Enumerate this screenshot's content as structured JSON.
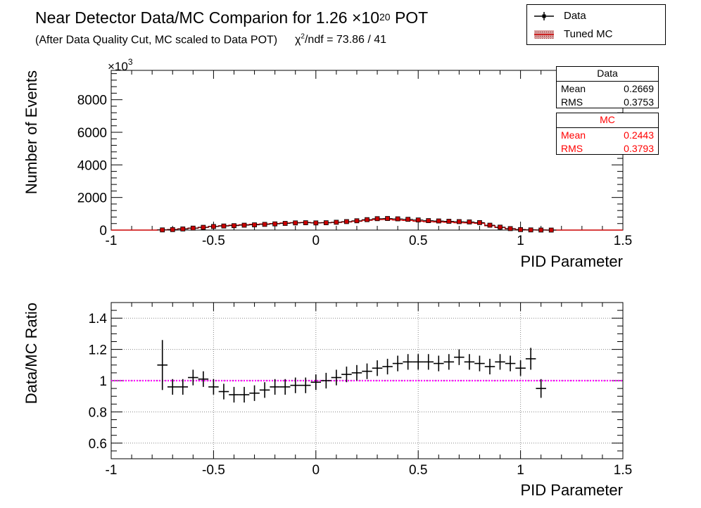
{
  "header": {
    "title_prefix": "Near Detector Data/MC Comparion for 1.26 ",
    "title_times": "×10",
    "title_exp": "20",
    "title_suffix": " POT",
    "subtitle": "(After Data Quality Cut, MC scaled to Data POT)",
    "chi2_symbol": "χ",
    "chi2_exp": "2",
    "chi2_text": "/ndf = 73.86 / 41"
  },
  "legend": {
    "items": [
      {
        "label": "Data",
        "style": "marker-line",
        "color": "#000000"
      },
      {
        "label": "Tuned MC",
        "style": "hatched-band",
        "color": "#cc0000"
      }
    ]
  },
  "stats": {
    "data": {
      "title": "Data",
      "mean_label": "Mean",
      "mean": "0.2669",
      "rms_label": "RMS",
      "rms": "0.3753",
      "color": "#000000"
    },
    "mc": {
      "title": "MC",
      "mean_label": "Mean",
      "mean": "0.2443",
      "rms_label": "RMS",
      "rms": "0.3793",
      "color": "#ff0000"
    }
  },
  "colors": {
    "data": "#000000",
    "mc": "#cc0000",
    "ratio_line": "#ff00ff",
    "grid": "#888888"
  },
  "chart_data": [
    {
      "type": "line",
      "xlabel": "PID Parameter",
      "ylabel": "Number of Events",
      "y_multiplier": "×10",
      "y_multiplier_exp": "3",
      "xlim": [
        -1,
        1.5
      ],
      "ylim": [
        0,
        9800
      ],
      "xticks": [
        -1,
        -0.5,
        0,
        0.5,
        1,
        1.5
      ],
      "xtick_labels": [
        "-1",
        "-0.5",
        "0",
        "0.5",
        "1",
        "1.5"
      ],
      "yticks": [
        0,
        2000,
        4000,
        6000,
        8000
      ],
      "ytick_labels": [
        "0",
        "2000",
        "4000",
        "6000",
        "8000"
      ],
      "grid": false,
      "legend_placement": "top-right",
      "x": [
        -0.75,
        -0.7,
        -0.65,
        -0.6,
        -0.55,
        -0.5,
        -0.45,
        -0.4,
        -0.35,
        -0.3,
        -0.25,
        -0.2,
        -0.15,
        -0.1,
        -0.05,
        0.0,
        0.05,
        0.1,
        0.15,
        0.2,
        0.25,
        0.3,
        0.35,
        0.4,
        0.45,
        0.5,
        0.55,
        0.6,
        0.65,
        0.7,
        0.75,
        0.8,
        0.85,
        0.9,
        0.95,
        1.0,
        1.05,
        1.1,
        1.15
      ],
      "series": [
        {
          "name": "Data",
          "values": [
            10,
            30,
            70,
            120,
            170,
            220,
            250,
            270,
            300,
            320,
            350,
            380,
            410,
            440,
            450,
            440,
            450,
            480,
            520,
            570,
            640,
            700,
            710,
            690,
            660,
            620,
            580,
            560,
            540,
            520,
            500,
            460,
            300,
            180,
            90,
            30,
            10,
            3,
            0
          ]
        },
        {
          "name": "Tuned MC",
          "values": [
            9,
            31,
            73,
            118,
            168,
            226,
            265,
            296,
            325,
            350,
            373,
            397,
            431,
            454,
            464,
            445,
            452,
            470,
            500,
            545,
            604,
            650,
            651,
            623,
            591,
            551,
            517,
            503,
            483,
            452,
            446,
            420,
            271,
            162,
            81,
            28,
            9,
            3,
            0
          ]
        }
      ]
    },
    {
      "type": "scatter",
      "xlabel": "PID Parameter",
      "ylabel": "Data/MC Ratio",
      "xlim": [
        -1,
        1.5
      ],
      "ylim": [
        0.5,
        1.5
      ],
      "xticks": [
        -1,
        -0.5,
        0,
        0.5,
        1,
        1.5
      ],
      "xtick_labels": [
        "-1",
        "-0.5",
        "0",
        "0.5",
        "1",
        "1.5"
      ],
      "yticks": [
        0.6,
        0.8,
        1,
        1.2,
        1.4
      ],
      "ytick_labels": [
        "0.6",
        "0.8",
        "1",
        "1.2",
        "1.4"
      ],
      "grid": true,
      "reference_line": 1,
      "x_bin_halfwidth": 0.025,
      "x": [
        -0.75,
        -0.7,
        -0.65,
        -0.6,
        -0.55,
        -0.5,
        -0.45,
        -0.4,
        -0.35,
        -0.3,
        -0.25,
        -0.2,
        -0.15,
        -0.1,
        -0.05,
        0.0,
        0.05,
        0.1,
        0.15,
        0.2,
        0.25,
        0.3,
        0.35,
        0.4,
        0.45,
        0.5,
        0.55,
        0.6,
        0.65,
        0.7,
        0.75,
        0.8,
        0.85,
        0.9,
        0.95,
        1.0,
        1.05,
        1.1
      ],
      "series": [
        {
          "name": "Data/MC",
          "values": [
            1.1,
            0.96,
            0.96,
            1.02,
            1.01,
            0.96,
            0.93,
            0.91,
            0.91,
            0.92,
            0.94,
            0.96,
            0.96,
            0.97,
            0.97,
            0.99,
            1.0,
            1.02,
            1.04,
            1.05,
            1.06,
            1.08,
            1.09,
            1.11,
            1.12,
            1.12,
            1.12,
            1.11,
            1.12,
            1.15,
            1.12,
            1.11,
            1.09,
            1.12,
            1.11,
            1.08,
            1.14,
            0.95
          ],
          "errors": [
            0.16,
            0.05,
            0.05,
            0.05,
            0.05,
            0.05,
            0.05,
            0.05,
            0.05,
            0.05,
            0.05,
            0.05,
            0.05,
            0.05,
            0.05,
            0.05,
            0.05,
            0.05,
            0.05,
            0.05,
            0.05,
            0.05,
            0.05,
            0.05,
            0.05,
            0.05,
            0.05,
            0.05,
            0.05,
            0.05,
            0.05,
            0.05,
            0.05,
            0.05,
            0.05,
            0.05,
            0.07,
            0.06
          ]
        }
      ]
    }
  ]
}
